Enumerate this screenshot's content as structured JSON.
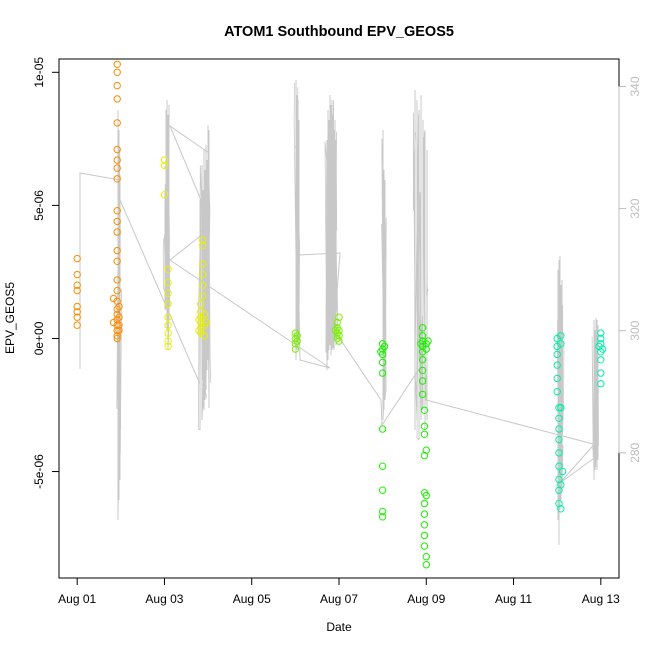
{
  "chart_data": {
    "type": "scatter",
    "title": "ATOM1 Southbound EPV_GEOS5",
    "xlabel": "Date",
    "ylabel": "EPV_GEOS5",
    "xlim": [
      "2018-07-31T14:00",
      "2018-08-13T10:00"
    ],
    "ylim": [
      -9e-06,
      1.05e-05
    ],
    "x_ticks": [
      {
        "value": "2018-08-01",
        "label": "Aug 01"
      },
      {
        "value": "2018-08-03",
        "label": "Aug 03"
      },
      {
        "value": "2018-08-05",
        "label": "Aug 05"
      },
      {
        "value": "2018-08-07",
        "label": "Aug 07"
      },
      {
        "value": "2018-08-09",
        "label": "Aug 09"
      },
      {
        "value": "2018-08-11",
        "label": "Aug 11"
      },
      {
        "value": "2018-08-13",
        "label": "Aug 13"
      }
    ],
    "y_ticks": [
      {
        "value": 1e-05,
        "label": "1e-05"
      },
      {
        "value": 5e-06,
        "label": "5e-06"
      },
      {
        "value": 0,
        "label": "0e+00"
      },
      {
        "value": -5e-06,
        "label": "-5e-06"
      }
    ],
    "y2_ticks": [
      {
        "value": 280,
        "label": "280"
      },
      {
        "value": 300,
        "label": "300"
      },
      {
        "value": 320,
        "label": "320"
      },
      {
        "value": 340,
        "label": "340"
      }
    ],
    "y2lim": [
      259.5,
      344.5
    ],
    "grid": false,
    "colors": {
      "line": "#c8c8c8",
      "right_axis": "#bdbdbd"
    },
    "series": [
      {
        "color": "#ff8c00",
        "points": [
          [
            "2018-08-01T00:00",
            3e-06
          ],
          [
            "2018-08-01T00:00",
            2.4e-06
          ],
          [
            "2018-08-01T00:00",
            1.8e-06
          ],
          [
            "2018-08-01T00:00",
            1.2e-06
          ],
          [
            "2018-08-01T00:00",
            8e-07
          ],
          [
            "2018-08-01T00:00",
            5e-07
          ],
          [
            "2018-08-01T00:00",
            2e-06
          ],
          [
            "2018-08-01T00:00",
            1e-06
          ],
          [
            "2018-08-01T22:00",
            1.03e-05
          ],
          [
            "2018-08-01T22:00",
            1e-05
          ],
          [
            "2018-08-01T22:00",
            9.5e-06
          ],
          [
            "2018-08-01T22:00",
            9e-06
          ],
          [
            "2018-08-01T22:00",
            8.1e-06
          ],
          [
            "2018-08-01T22:00",
            7.1e-06
          ],
          [
            "2018-08-01T22:00",
            6.7e-06
          ],
          [
            "2018-08-01T22:00",
            6.4e-06
          ],
          [
            "2018-08-01T22:00",
            6e-06
          ],
          [
            "2018-08-01T22:00",
            4.8e-06
          ],
          [
            "2018-08-01T22:00",
            4.4e-06
          ],
          [
            "2018-08-01T22:00",
            4e-06
          ],
          [
            "2018-08-01T22:00",
            3.3e-06
          ],
          [
            "2018-08-01T22:00",
            2.9e-06
          ],
          [
            "2018-08-01T22:00",
            2.2e-06
          ],
          [
            "2018-08-01T22:00",
            1.8e-06
          ],
          [
            "2018-08-01T22:00",
            1.4e-06
          ],
          [
            "2018-08-01T22:00",
            1.1e-06
          ],
          [
            "2018-08-01T22:00",
            9e-07
          ],
          [
            "2018-08-01T22:00",
            7e-07
          ],
          [
            "2018-08-01T22:00",
            5e-07
          ],
          [
            "2018-08-01T22:00",
            3e-07
          ],
          [
            "2018-08-01T22:00",
            1e-07
          ],
          [
            "2018-08-01T22:00",
            0.0
          ],
          [
            "2018-08-01T23:00",
            8e-07
          ],
          [
            "2018-08-01T23:00",
            5e-07
          ],
          [
            "2018-08-01T23:00",
            3e-07
          ],
          [
            "2018-08-01T23:00",
            1.2e-06
          ],
          [
            "2018-08-01T20:00",
            6e-07
          ],
          [
            "2018-08-01T20:00",
            1.5e-06
          ]
        ]
      },
      {
        "color": "#e8f000",
        "points": [
          [
            "2018-08-03T00:00",
            6.7e-06
          ],
          [
            "2018-08-03T00:00",
            6.5e-06
          ],
          [
            "2018-08-03T00:00",
            5.4e-06
          ],
          [
            "2018-08-03T02:00",
            2.6e-06
          ],
          [
            "2018-08-03T02:00",
            2.1e-06
          ],
          [
            "2018-08-03T02:00",
            1.7e-06
          ],
          [
            "2018-08-03T02:00",
            1.3e-06
          ],
          [
            "2018-08-03T02:00",
            8e-07
          ],
          [
            "2018-08-03T02:00",
            5e-07
          ],
          [
            "2018-08-03T02:00",
            2e-07
          ],
          [
            "2018-08-03T02:00",
            -1e-07
          ],
          [
            "2018-08-03T02:00",
            -3e-07
          ],
          [
            "2018-08-03T21:00",
            3.7e-06
          ],
          [
            "2018-08-03T21:00",
            3.5e-06
          ],
          [
            "2018-08-03T21:00",
            2.8e-06
          ],
          [
            "2018-08-03T21:00",
            2.4e-06
          ],
          [
            "2018-08-03T21:00",
            2e-06
          ],
          [
            "2018-08-03T21:00",
            1.6e-06
          ],
          [
            "2018-08-03T20:00",
            1.3e-06
          ],
          [
            "2018-08-03T20:00",
            1e-06
          ],
          [
            "2018-08-03T20:00",
            8e-07
          ],
          [
            "2018-08-03T20:00",
            6e-07
          ],
          [
            "2018-08-03T20:00",
            4e-07
          ],
          [
            "2018-08-03T20:00",
            2e-07
          ],
          [
            "2018-08-03T22:00",
            9e-07
          ],
          [
            "2018-08-03T22:00",
            5e-07
          ],
          [
            "2018-08-03T22:00",
            1e-07
          ],
          [
            "2018-08-03T19:00",
            7e-07
          ],
          [
            "2018-08-03T19:00",
            3e-07
          ],
          [
            "2018-08-03T23:00",
            6e-07
          ]
        ]
      },
      {
        "color": "#7af000",
        "points": [
          [
            "2018-08-06T00:00",
            2e-07
          ],
          [
            "2018-08-06T00:00",
            0.0
          ],
          [
            "2018-08-06T00:00",
            -2e-07
          ],
          [
            "2018-08-06T01:00",
            1e-07
          ],
          [
            "2018-08-06T01:00",
            -1e-07
          ],
          [
            "2018-08-06T00:00",
            -4e-07
          ],
          [
            "2018-08-06T23:00",
            6e-07
          ],
          [
            "2018-08-06T23:00",
            4e-07
          ],
          [
            "2018-08-06T23:00",
            2e-07
          ],
          [
            "2018-08-06T23:00",
            0.0
          ],
          [
            "2018-08-07T00:00",
            3e-07
          ],
          [
            "2018-08-07T00:00",
            1e-07
          ],
          [
            "2018-08-07T00:00",
            -1e-07
          ],
          [
            "2018-08-07T00:00",
            8e-07
          ],
          [
            "2018-08-06T22:00",
            3e-07
          ]
        ]
      },
      {
        "color": "#1cf000",
        "points": [
          [
            "2018-08-08T00:00",
            -2e-07
          ],
          [
            "2018-08-08T00:00",
            -4e-07
          ],
          [
            "2018-08-08T00:00",
            -6e-07
          ],
          [
            "2018-08-08T00:00",
            -9e-07
          ],
          [
            "2018-08-08T00:00",
            -1.3e-06
          ],
          [
            "2018-08-08T00:00",
            -3.4e-06
          ],
          [
            "2018-08-08T00:00",
            -4.8e-06
          ],
          [
            "2018-08-08T00:00",
            -5.7e-06
          ],
          [
            "2018-08-08T00:00",
            -6.5e-06
          ],
          [
            "2018-08-08T00:00",
            -6.7e-06
          ],
          [
            "2018-08-07T23:00",
            -5e-07
          ],
          [
            "2018-08-08T01:00",
            -3e-07
          ],
          [
            "2018-08-08T22:00",
            4e-07
          ],
          [
            "2018-08-08T22:00",
            1e-07
          ],
          [
            "2018-08-08T22:00",
            -1e-07
          ],
          [
            "2018-08-08T22:00",
            -3e-07
          ],
          [
            "2018-08-08T22:00",
            -5e-07
          ],
          [
            "2018-08-08T22:00",
            -8e-07
          ],
          [
            "2018-08-08T22:00",
            -1.2e-06
          ],
          [
            "2018-08-08T22:00",
            -1.6e-06
          ],
          [
            "2018-08-08T22:00",
            -2.1e-06
          ],
          [
            "2018-08-08T23:00",
            -2.7e-06
          ],
          [
            "2018-08-08T23:00",
            -3.3e-06
          ],
          [
            "2018-08-08T23:00",
            -3.6e-06
          ],
          [
            "2018-08-08T23:00",
            -4.4e-06
          ],
          [
            "2018-08-08T23:00",
            -5.8e-06
          ],
          [
            "2018-08-08T23:00",
            -6.2e-06
          ],
          [
            "2018-08-08T23:00",
            -6.6e-06
          ],
          [
            "2018-08-08T23:00",
            -7e-06
          ],
          [
            "2018-08-08T23:00",
            -7.4e-06
          ],
          [
            "2018-08-08T23:00",
            -7.8e-06
          ],
          [
            "2018-08-09T00:00",
            -8.2e-06
          ],
          [
            "2018-08-09T00:00",
            -8.5e-06
          ],
          [
            "2018-08-09T00:00",
            -2e-07
          ],
          [
            "2018-08-09T00:00",
            -4e-07
          ],
          [
            "2018-08-09T00:00",
            -4.2e-06
          ],
          [
            "2018-08-09T00:00",
            -5.9e-06
          ],
          [
            "2018-08-08T21:00",
            -2e-07
          ],
          [
            "2018-08-09T01:00",
            -1e-07
          ]
        ]
      },
      {
        "color": "#00f0a8",
        "points": [
          [
            "2018-08-12T00:00",
            0.0
          ],
          [
            "2018-08-12T00:00",
            -3e-07
          ],
          [
            "2018-08-12T00:00",
            -6e-07
          ],
          [
            "2018-08-12T00:00",
            -1e-06
          ],
          [
            "2018-08-12T00:00",
            -1.5e-06
          ],
          [
            "2018-08-12T00:00",
            -2e-06
          ],
          [
            "2018-08-12T01:00",
            -2.6e-06
          ],
          [
            "2018-08-12T01:00",
            -3e-06
          ],
          [
            "2018-08-12T01:00",
            -3.4e-06
          ],
          [
            "2018-08-12T01:00",
            -3.8e-06
          ],
          [
            "2018-08-12T01:00",
            -4.3e-06
          ],
          [
            "2018-08-12T01:00",
            -4.8e-06
          ],
          [
            "2018-08-12T01:00",
            -5.3e-06
          ],
          [
            "2018-08-12T01:00",
            -5.7e-06
          ],
          [
            "2018-08-12T01:00",
            -6.2e-06
          ],
          [
            "2018-08-12T02:00",
            -6.4e-06
          ],
          [
            "2018-08-12T02:00",
            -5.5e-06
          ],
          [
            "2018-08-12T02:00",
            -2.6e-06
          ],
          [
            "2018-08-12T02:00",
            -2e-07
          ],
          [
            "2018-08-12T03:00",
            -5e-06
          ],
          [
            "2018-08-12T02:00",
            1e-07
          ],
          [
            "2018-08-13T00:00",
            2e-07
          ],
          [
            "2018-08-13T00:00",
            0.0
          ],
          [
            "2018-08-13T00:00",
            -2e-07
          ],
          [
            "2018-08-13T00:00",
            -5e-07
          ],
          [
            "2018-08-13T00:00",
            -8e-07
          ],
          [
            "2018-08-13T00:00",
            -1.3e-06
          ],
          [
            "2018-08-13T00:00",
            -1.7e-06
          ],
          [
            "2018-08-12T23:00",
            -3e-07
          ],
          [
            "2018-08-13T01:00",
            -4e-07
          ]
        ]
      }
    ]
  }
}
